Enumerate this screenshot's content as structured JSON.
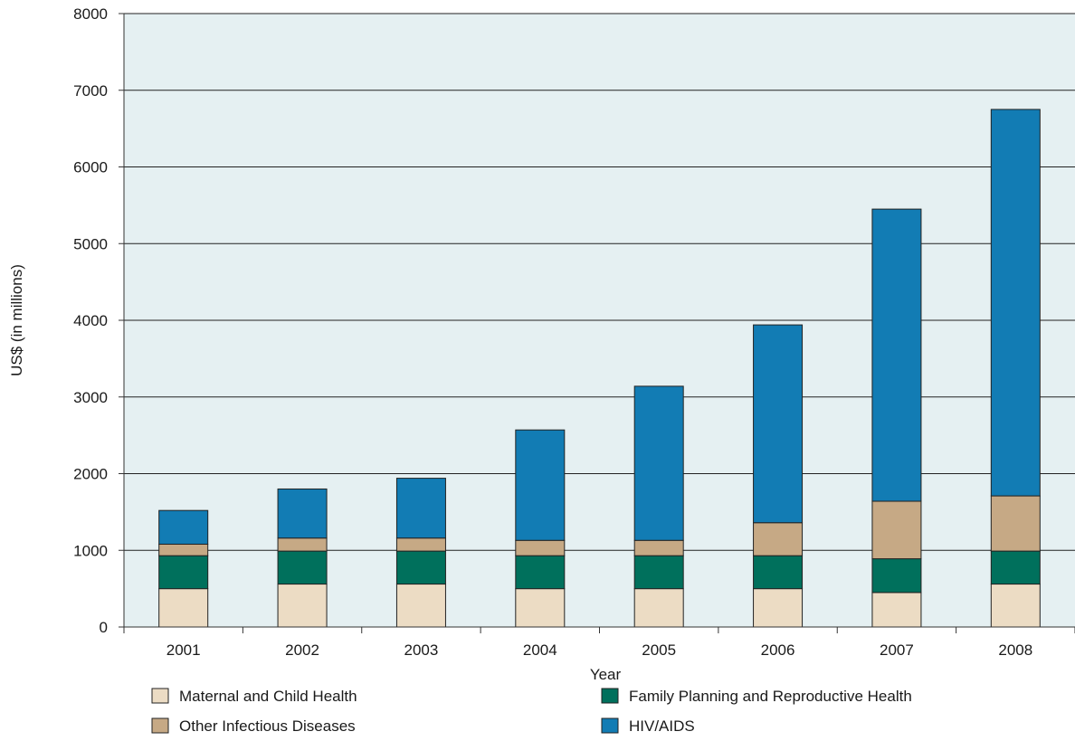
{
  "chart_data": {
    "type": "bar",
    "stacked": true,
    "categories": [
      "2001",
      "2002",
      "2003",
      "2004",
      "2005",
      "2006",
      "2007",
      "2008"
    ],
    "series": [
      {
        "name": "Maternal and Child Health",
        "color": "#ecdcc4",
        "values": [
          500,
          560,
          560,
          500,
          500,
          500,
          450,
          560
        ]
      },
      {
        "name": "Family Planning and Reproductive Health",
        "color": "#00705c",
        "values": [
          430,
          430,
          430,
          430,
          430,
          430,
          440,
          430
        ]
      },
      {
        "name": "Other Infectious Diseases",
        "color": "#c6a985",
        "values": [
          150,
          170,
          170,
          200,
          200,
          430,
          750,
          720
        ]
      },
      {
        "name": "HIV/AIDS",
        "color": "#127cb4",
        "values": [
          440,
          640,
          780,
          1440,
          2010,
          2580,
          3810,
          5040
        ]
      }
    ],
    "xlabel": "Year",
    "ylabel": "US$ (in millions)",
    "ylim": [
      0,
      8000
    ],
    "yticks": [
      0,
      1000,
      2000,
      3000,
      4000,
      5000,
      6000,
      7000,
      8000
    ],
    "grid": true,
    "plot_background": "#e5f0f2",
    "legend_position": "bottom"
  }
}
